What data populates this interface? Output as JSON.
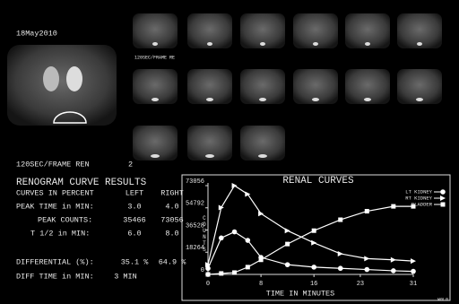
{
  "header": {
    "date": "18May2010",
    "frame_label_small": "120SEC/FRAME RE",
    "frame_label": "120SEC/FRAME REN",
    "frame_count": "2"
  },
  "results": {
    "title": "RENOGRAM CURVE RESULTS",
    "rows": [
      [
        "CURVES IN PERCENT",
        "LEFT",
        "RIGHT"
      ],
      [
        "PEAK TIME in MIN:",
        "3.0",
        "4.0"
      ],
      [
        "PEAK COUNTS:",
        "35466",
        "73056"
      ],
      [
        "T 1/2 in MIN:",
        "6.0",
        "8.0"
      ],
      [
        "DIFFERENTIAL (%):",
        "35.1 %",
        "64.9 %"
      ],
      [
        "DIFF TIME in MIN:",
        "3 MIN"
      ]
    ]
  },
  "footer": "W0L0",
  "chart_data": {
    "type": "line",
    "title": "RENAL CURVES",
    "x_label": "TIME IN MINUTES",
    "y_label": "COUNTS",
    "x": [
      0,
      2,
      4,
      6,
      8,
      12,
      16,
      20,
      24,
      28,
      31
    ],
    "series": [
      {
        "name": "LT KIDNEY",
        "color": "#ffffff",
        "marker": "circle",
        "values": [
          5000,
          30000,
          35000,
          28000,
          14000,
          8000,
          6000,
          5000,
          4000,
          3000,
          2500
        ]
      },
      {
        "name": "RT KIDNEY",
        "color": "#ffffff",
        "marker": "triangle",
        "values": [
          8000,
          55000,
          73056,
          66000,
          50000,
          36000,
          26000,
          17000,
          13000,
          12000,
          11000
        ]
      },
      {
        "name": "BLADDER",
        "color": "#ffffff",
        "marker": "square",
        "values": [
          0,
          800,
          1500,
          6000,
          12000,
          25000,
          36000,
          45000,
          52000,
          56000,
          56000
        ]
      }
    ],
    "xlim": [
      0,
      31
    ],
    "ylim": [
      0,
      73056
    ],
    "xticks": [
      0,
      8,
      16,
      23,
      31
    ],
    "yticks": [
      0,
      18264,
      36528,
      54792,
      73056
    ],
    "legend": "upper right"
  }
}
